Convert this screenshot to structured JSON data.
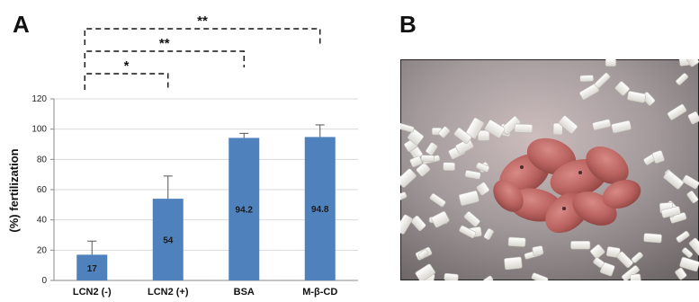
{
  "panels": {
    "left_label": "A",
    "right_label": "B"
  },
  "chart_data": {
    "type": "bar",
    "categories": [
      "LCN2 (-)",
      "LCN2 (+)",
      "BSA",
      "M-β-CD"
    ],
    "values": [
      17,
      54,
      94.2,
      94.8
    ],
    "value_labels": [
      "17",
      "54",
      "94.2",
      "94.8"
    ],
    "error_bars": [
      9,
      15,
      3,
      8
    ],
    "ylabel": "(%) fertilization",
    "xlabel": "",
    "ylim": [
      0,
      120
    ],
    "yticks": [
      0,
      20,
      40,
      60,
      80,
      100,
      120
    ],
    "grid": true,
    "bar_color": "#4f81bd",
    "significance": [
      {
        "from": "LCN2 (-)",
        "to": "LCN2 (+)",
        "label": "*"
      },
      {
        "from": "LCN2 (-)",
        "to": "BSA",
        "label": "**"
      },
      {
        "from": "LCN2 (-)",
        "to": "M-β-CD",
        "label": "**"
      }
    ]
  },
  "photo": {
    "subject": "newborn mouse pups nestled in white bedding"
  }
}
